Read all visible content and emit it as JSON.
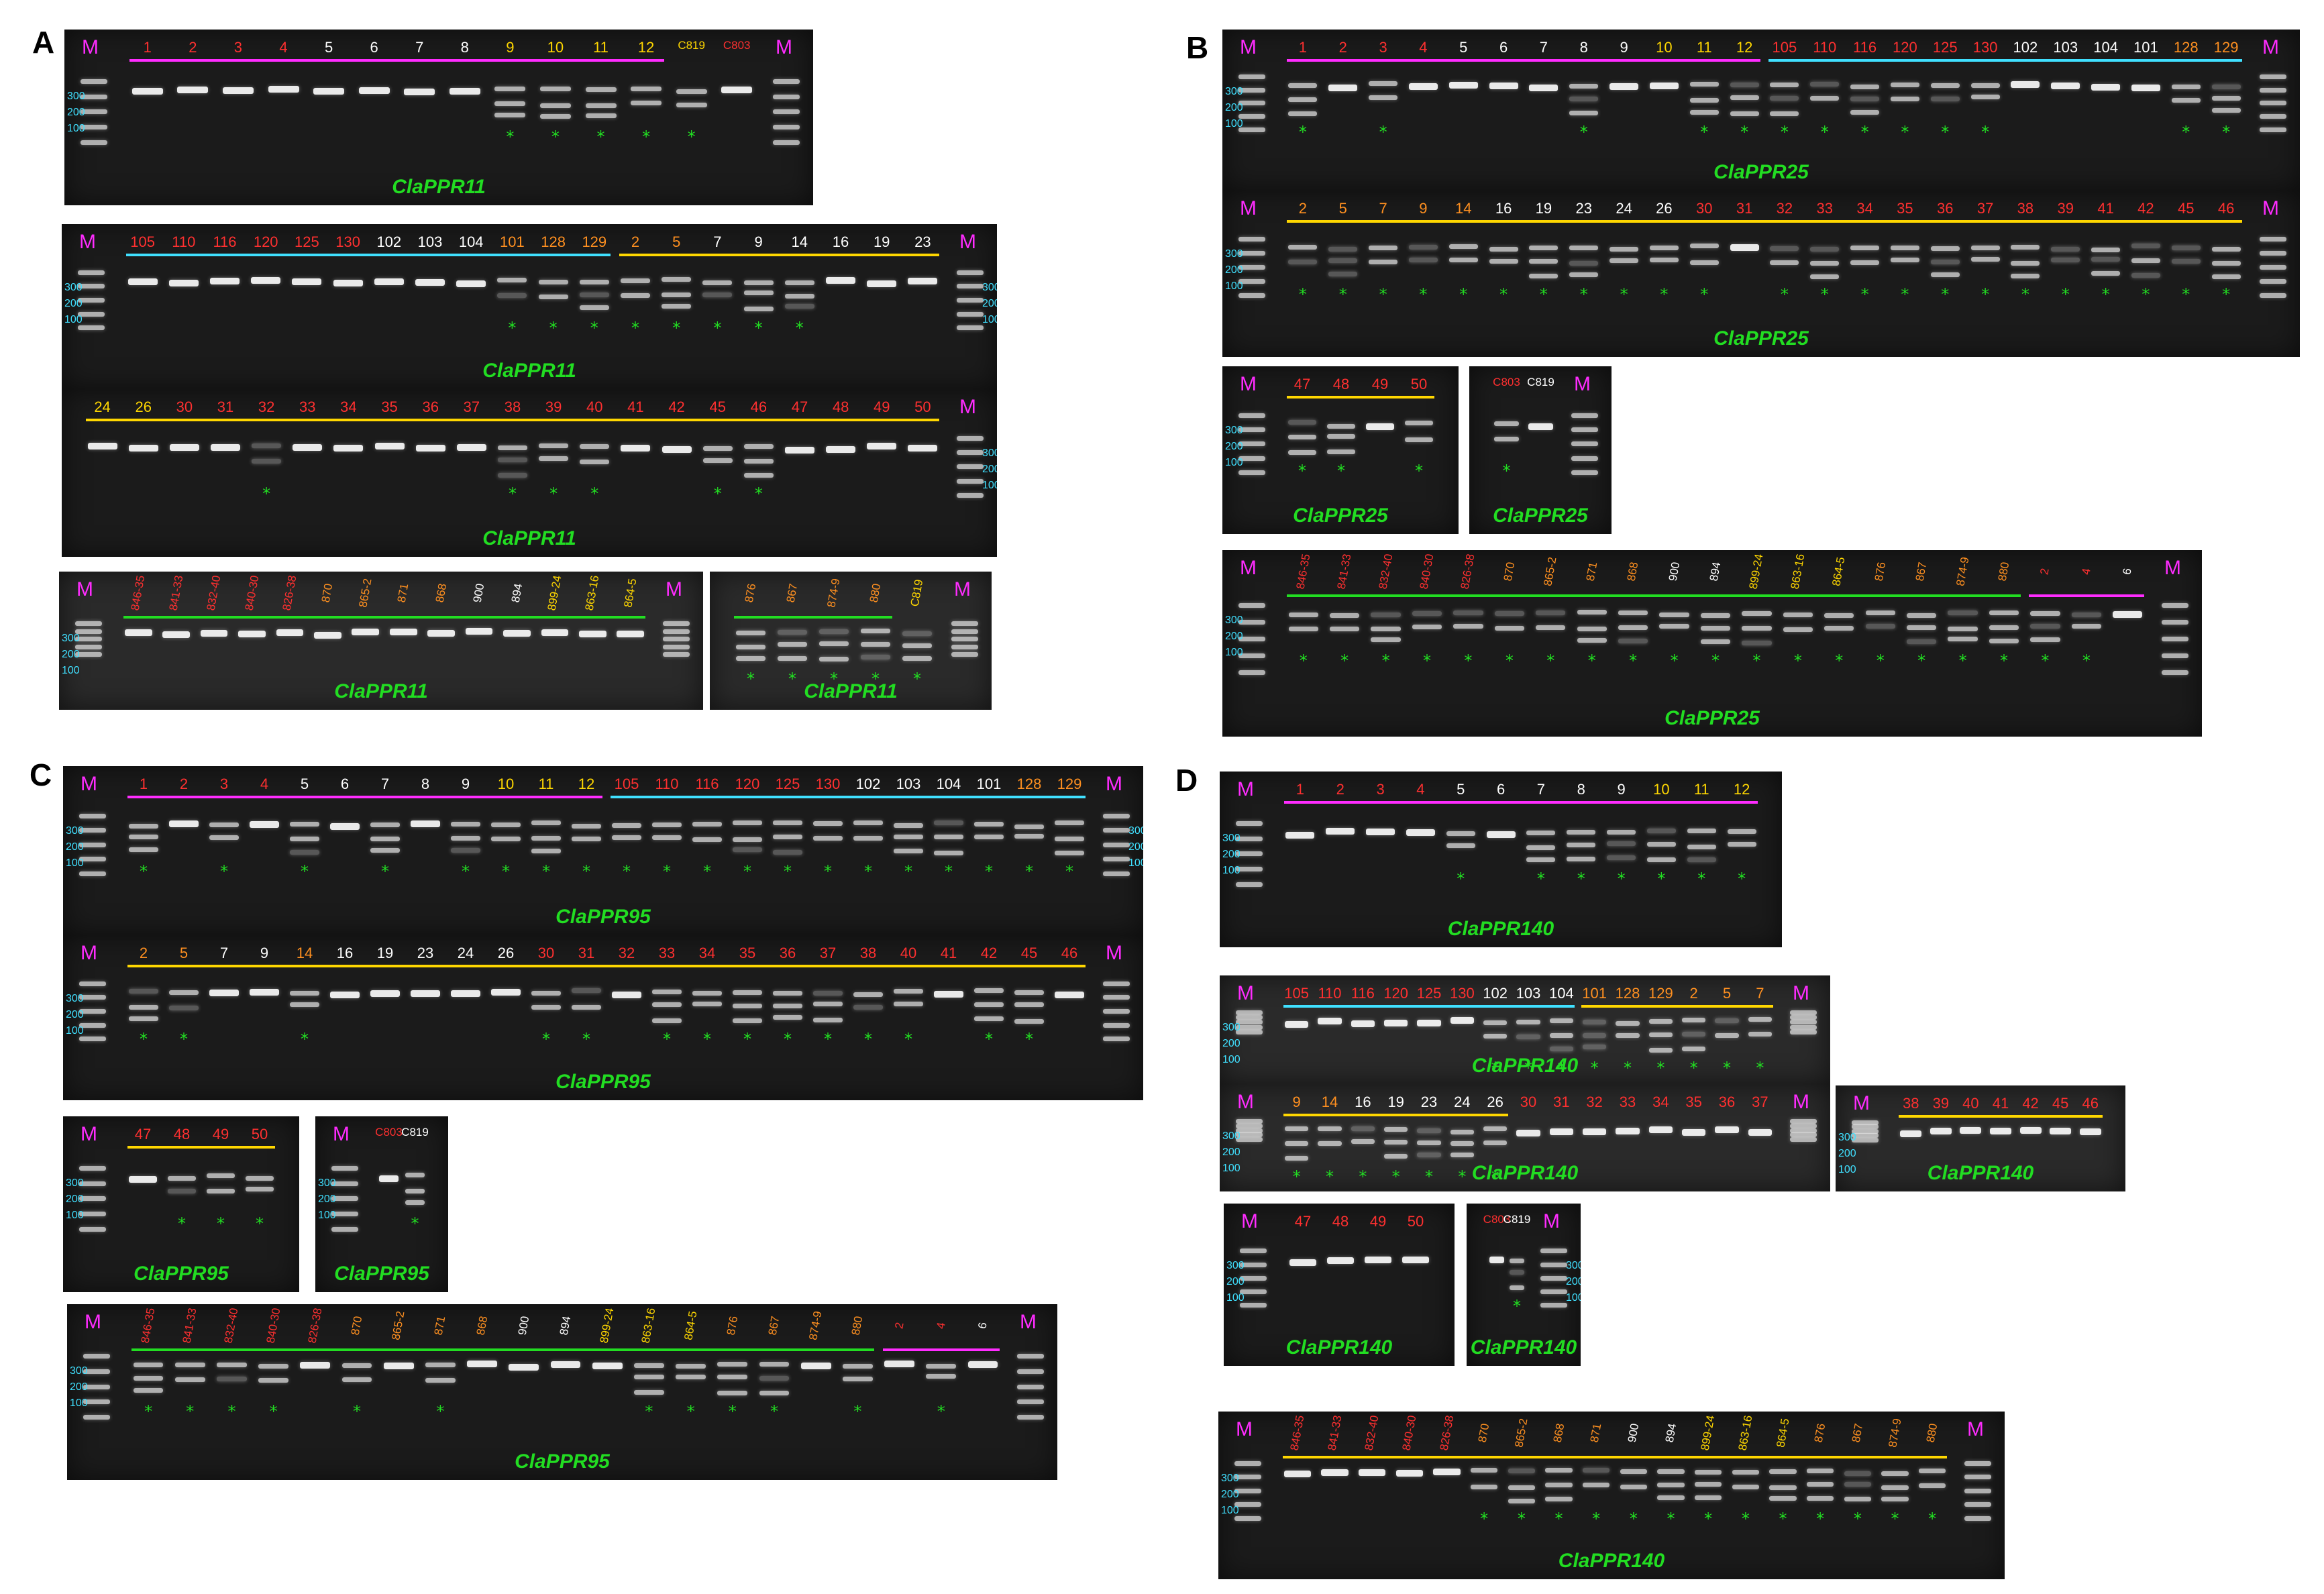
{
  "panels": {
    "A": "A",
    "B": "B",
    "C": "C",
    "D": "D"
  },
  "markers": {
    "M": "M",
    "sizes": [
      "300",
      "200",
      "100"
    ]
  },
  "genes": {
    "a": "ClaPPR11",
    "b": "ClaPPR25",
    "c": "ClaPPR95",
    "d": "ClaPPR140"
  },
  "colors": {
    "red": "#ff3030",
    "yellow": "#ffd700",
    "white": "#ffffff",
    "orange": "#ff9020",
    "magenta": "#ff2cff",
    "cyan": "#40e0ff",
    "green": "#22dd22"
  },
  "gels": [
    {
      "id": "A1",
      "labels": [
        "1",
        "2",
        "3",
        "4",
        "5",
        "6",
        "7",
        "8",
        "9",
        "10",
        "11",
        "12",
        "C819",
        "C803"
      ],
      "colors": [
        "red",
        "red",
        "red",
        "red",
        "white",
        "white",
        "white",
        "white",
        "yellow",
        "yellow",
        "yellow",
        "yellow",
        "yellow",
        "red"
      ],
      "gene": "a",
      "stars": [
        8,
        9,
        10,
        11,
        12
      ]
    },
    {
      "id": "A2",
      "labels": [
        "105",
        "110",
        "116",
        "120",
        "125",
        "130",
        "102",
        "103",
        "104",
        "101",
        "128",
        "129",
        "2",
        "5",
        "7",
        "9",
        "14",
        "16",
        "19",
        "23"
      ],
      "colors": [
        "red",
        "red",
        "red",
        "red",
        "red",
        "red",
        "white",
        "white",
        "white",
        "orange",
        "orange",
        "orange",
        "orange",
        "orange",
        "white",
        "white",
        "white",
        "white",
        "white",
        "white"
      ],
      "gene": "a",
      "stars": [
        9,
        10,
        11,
        12,
        13,
        14,
        15,
        16
      ]
    },
    {
      "id": "A3",
      "labels": [
        "24",
        "26",
        "30",
        "31",
        "32",
        "33",
        "34",
        "35",
        "36",
        "37",
        "38",
        "39",
        "40",
        "41",
        "42",
        "45",
        "46",
        "47",
        "48",
        "49",
        "50"
      ],
      "colors": [
        "yellow",
        "yellow",
        "red",
        "red",
        "red",
        "red",
        "red",
        "red",
        "red",
        "red",
        "red",
        "red",
        "red",
        "red",
        "red",
        "red",
        "red",
        "red",
        "red",
        "red",
        "red"
      ],
      "gene": "a",
      "stars": [
        4,
        10,
        11,
        12,
        15,
        16
      ]
    },
    {
      "id": "A4",
      "labels": [
        "846-35",
        "841-33",
        "832-40",
        "840-30",
        "826-38",
        "870",
        "865-2",
        "871",
        "868",
        "900",
        "894",
        "899-24",
        "863-16",
        "864-5"
      ],
      "colors": [
        "red",
        "red",
        "red",
        "red",
        "red",
        "orange",
        "orange",
        "orange",
        "orange",
        "white",
        "white",
        "yellow",
        "yellow",
        "yellow"
      ],
      "gene": "a",
      "stars": []
    },
    {
      "id": "A5",
      "labels": [
        "876",
        "867",
        "874-9",
        "880",
        "C819"
      ],
      "colors": [
        "orange",
        "orange",
        "orange",
        "orange",
        "yellow"
      ],
      "gene": "a",
      "stars": [
        0,
        1,
        2,
        3,
        4
      ]
    },
    {
      "id": "B1",
      "labels": [
        "1",
        "2",
        "3",
        "4",
        "5",
        "6",
        "7",
        "8",
        "9",
        "10",
        "11",
        "12",
        "105",
        "110",
        "116",
        "120",
        "125",
        "130",
        "102",
        "103",
        "104",
        "101",
        "128",
        "129"
      ],
      "colors": [
        "red",
        "red",
        "red",
        "red",
        "white",
        "white",
        "white",
        "white",
        "white",
        "yellow",
        "yellow",
        "yellow",
        "red",
        "red",
        "red",
        "red",
        "red",
        "red",
        "white",
        "white",
        "white",
        "white",
        "orange",
        "orange"
      ],
      "gene": "b",
      "stars": [
        0,
        2,
        7,
        10,
        11,
        12,
        13,
        14,
        15,
        16,
        17,
        22,
        23
      ]
    },
    {
      "id": "B2",
      "labels": [
        "2",
        "5",
        "7",
        "9",
        "14",
        "16",
        "19",
        "23",
        "24",
        "26",
        "30",
        "31",
        "32",
        "33",
        "34",
        "35",
        "36",
        "37",
        "38",
        "39",
        "41",
        "42",
        "45",
        "46"
      ],
      "colors": [
        "orange",
        "orange",
        "orange",
        "orange",
        "orange",
        "white",
        "white",
        "white",
        "white",
        "white",
        "red",
        "red",
        "red",
        "red",
        "red",
        "red",
        "red",
        "red",
        "red",
        "red",
        "red",
        "red",
        "red",
        "red"
      ],
      "gene": "b",
      "stars": [
        0,
        1,
        2,
        3,
        4,
        5,
        6,
        7,
        8,
        9,
        10,
        12,
        13,
        14,
        15,
        16,
        17,
        18,
        19,
        20,
        21,
        22,
        23
      ]
    },
    {
      "id": "B3",
      "labels": [
        "47",
        "48",
        "49",
        "50"
      ],
      "colors": [
        "red",
        "red",
        "red",
        "red"
      ],
      "gene": "b",
      "stars": [
        0,
        1,
        3
      ]
    },
    {
      "id": "B4",
      "labels": [
        "C803",
        "C819"
      ],
      "colors": [
        "red",
        "white"
      ],
      "gene": "b",
      "stars": [
        0
      ]
    },
    {
      "id": "B5",
      "labels": [
        "846-35",
        "841-33",
        "832-40",
        "840-30",
        "826-38",
        "870",
        "865-2",
        "871",
        "868",
        "900",
        "894",
        "899-24",
        "863-16",
        "864-5",
        "876",
        "867",
        "874-9",
        "880",
        "2",
        "4",
        "6"
      ],
      "colors": [
        "red",
        "red",
        "red",
        "red",
        "red",
        "orange",
        "orange",
        "orange",
        "orange",
        "white",
        "white",
        "yellow",
        "yellow",
        "yellow",
        "orange",
        "orange",
        "orange",
        "orange",
        "red",
        "red",
        "white"
      ],
      "gene": "b",
      "stars": [
        0,
        1,
        2,
        3,
        4,
        5,
        6,
        7,
        8,
        9,
        10,
        11,
        12,
        13,
        14,
        15,
        16,
        17,
        18,
        19
      ]
    },
    {
      "id": "C1",
      "labels": [
        "1",
        "2",
        "3",
        "4",
        "5",
        "6",
        "7",
        "8",
        "9",
        "10",
        "11",
        "12",
        "105",
        "110",
        "116",
        "120",
        "125",
        "130",
        "102",
        "103",
        "104",
        "101",
        "128",
        "129"
      ],
      "colors": [
        "red",
        "red",
        "red",
        "red",
        "white",
        "white",
        "white",
        "white",
        "white",
        "yellow",
        "yellow",
        "yellow",
        "red",
        "red",
        "red",
        "red",
        "red",
        "red",
        "white",
        "white",
        "white",
        "white",
        "orange",
        "orange"
      ],
      "gene": "c",
      "stars": [
        0,
        2,
        4,
        6,
        8,
        9,
        10,
        11,
        12,
        13,
        14,
        15,
        16,
        17,
        18,
        19,
        20,
        21,
        22,
        23
      ]
    },
    {
      "id": "C2",
      "labels": [
        "2",
        "5",
        "7",
        "9",
        "14",
        "16",
        "19",
        "23",
        "24",
        "26",
        "30",
        "31",
        "32",
        "33",
        "34",
        "35",
        "36",
        "37",
        "38",
        "40",
        "41",
        "42",
        "45",
        "46"
      ],
      "colors": [
        "orange",
        "orange",
        "white",
        "white",
        "orange",
        "white",
        "white",
        "white",
        "white",
        "white",
        "red",
        "red",
        "red",
        "red",
        "red",
        "red",
        "red",
        "red",
        "red",
        "red",
        "red",
        "red",
        "red",
        "red"
      ],
      "gene": "c",
      "stars": [
        0,
        1,
        4,
        10,
        11,
        13,
        14,
        15,
        16,
        17,
        18,
        19,
        21,
        22
      ]
    },
    {
      "id": "C3",
      "labels": [
        "47",
        "48",
        "49",
        "50"
      ],
      "colors": [
        "red",
        "red",
        "red",
        "red"
      ],
      "gene": "c",
      "stars": [
        1,
        2,
        3
      ]
    },
    {
      "id": "C4",
      "labels": [
        "C803",
        "C819"
      ],
      "colors": [
        "red",
        "white"
      ],
      "gene": "c",
      "stars": [
        1
      ]
    },
    {
      "id": "C5",
      "labels": [
        "846-35",
        "841-33",
        "832-40",
        "840-30",
        "826-38",
        "870",
        "865-2",
        "871",
        "868",
        "900",
        "894",
        "899-24",
        "863-16",
        "864-5",
        "876",
        "867",
        "874-9",
        "880",
        "2",
        "4",
        "6"
      ],
      "colors": [
        "red",
        "red",
        "red",
        "red",
        "red",
        "orange",
        "orange",
        "orange",
        "orange",
        "white",
        "white",
        "yellow",
        "yellow",
        "yellow",
        "orange",
        "orange",
        "orange",
        "orange",
        "red",
        "red",
        "white"
      ],
      "gene": "c",
      "stars": [
        0,
        1,
        2,
        3,
        5,
        7,
        12,
        13,
        14,
        15,
        17,
        19
      ]
    },
    {
      "id": "D1",
      "labels": [
        "1",
        "2",
        "3",
        "4",
        "5",
        "6",
        "7",
        "8",
        "9",
        "10",
        "11",
        "12"
      ],
      "colors": [
        "red",
        "red",
        "red",
        "red",
        "white",
        "white",
        "white",
        "white",
        "white",
        "yellow",
        "yellow",
        "yellow"
      ],
      "gene": "d",
      "stars": [
        4,
        6,
        7,
        8,
        9,
        10,
        11
      ]
    },
    {
      "id": "D2",
      "labels": [
        "105",
        "110",
        "116",
        "120",
        "125",
        "130",
        "102",
        "103",
        "104",
        "101",
        "128",
        "129",
        "2",
        "5",
        "7"
      ],
      "colors": [
        "red",
        "red",
        "red",
        "red",
        "red",
        "red",
        "white",
        "white",
        "white",
        "orange",
        "orange",
        "orange",
        "orange",
        "orange",
        "orange"
      ],
      "gene": "d",
      "stars": [
        6,
        7,
        8,
        9,
        10,
        11,
        12,
        13,
        14
      ]
    },
    {
      "id": "D3",
      "labels": [
        "9",
        "14",
        "16",
        "19",
        "23",
        "24",
        "26",
        "30",
        "31",
        "32",
        "33",
        "34",
        "35",
        "36",
        "37"
      ],
      "colors": [
        "orange",
        "orange",
        "white",
        "white",
        "white",
        "white",
        "white",
        "red",
        "red",
        "red",
        "red",
        "red",
        "red",
        "red",
        "red"
      ],
      "gene": "d",
      "stars": [
        0,
        1,
        2,
        3,
        4,
        5,
        6
      ]
    },
    {
      "id": "D4",
      "labels": [
        "38",
        "39",
        "40",
        "41",
        "42",
        "45",
        "46"
      ],
      "colors": [
        "red",
        "red",
        "red",
        "red",
        "red",
        "red",
        "red"
      ],
      "gene": "d",
      "stars": []
    },
    {
      "id": "D5",
      "labels": [
        "47",
        "48",
        "49",
        "50"
      ],
      "colors": [
        "red",
        "red",
        "red",
        "red"
      ],
      "gene": "d",
      "stars": []
    },
    {
      "id": "D6",
      "labels": [
        "C803",
        "C819"
      ],
      "colors": [
        "red",
        "white"
      ],
      "gene": "d",
      "stars": [
        1
      ]
    },
    {
      "id": "D7",
      "labels": [
        "846-35",
        "841-33",
        "832-40",
        "840-30",
        "826-38",
        "870",
        "865-2",
        "868",
        "871",
        "900",
        "894",
        "899-24",
        "863-16",
        "864-5",
        "876",
        "867",
        "874-9",
        "880"
      ],
      "colors": [
        "red",
        "red",
        "red",
        "red",
        "red",
        "orange",
        "orange",
        "orange",
        "orange",
        "white",
        "white",
        "yellow",
        "yellow",
        "yellow",
        "orange",
        "orange",
        "orange",
        "orange"
      ],
      "gene": "d",
      "stars": [
        5,
        6,
        7,
        8,
        9,
        10,
        11,
        12,
        13,
        14,
        15,
        16,
        17
      ]
    }
  ]
}
